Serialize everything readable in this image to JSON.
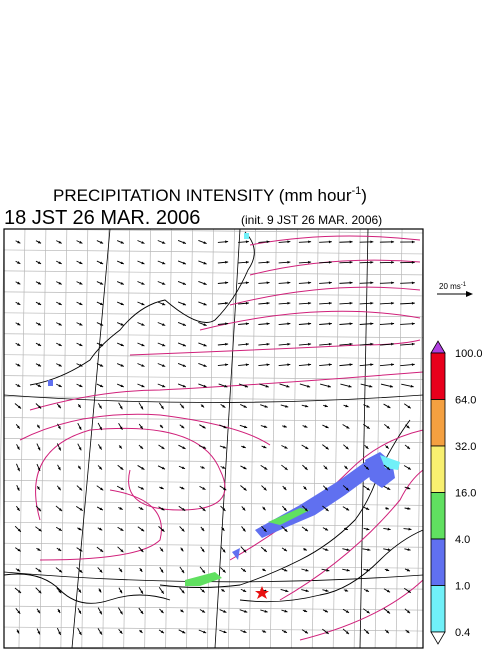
{
  "header": {
    "title": "PRECIPITATION INTENSITY (mm hour",
    "title_sup": "-1",
    "title_end": ")",
    "valid_time": "18 JST 26 MAR. 2006",
    "init_time": "(init. 9 JST 26 MAR. 2006)"
  },
  "vector_scale": {
    "label": "20 ms",
    "label_sup": "-1"
  },
  "colorbar": {
    "labels": [
      "100.0",
      "64.0",
      "32.0",
      "16.0",
      "4.0",
      "1.0",
      "0.4"
    ],
    "colors": [
      "#e8001c",
      "#f4a040",
      "#f8f070",
      "#60e060",
      "#6070f0",
      "#70f0f8"
    ],
    "over_color": "#b040e0",
    "under_color": "#ffffff"
  }
}
